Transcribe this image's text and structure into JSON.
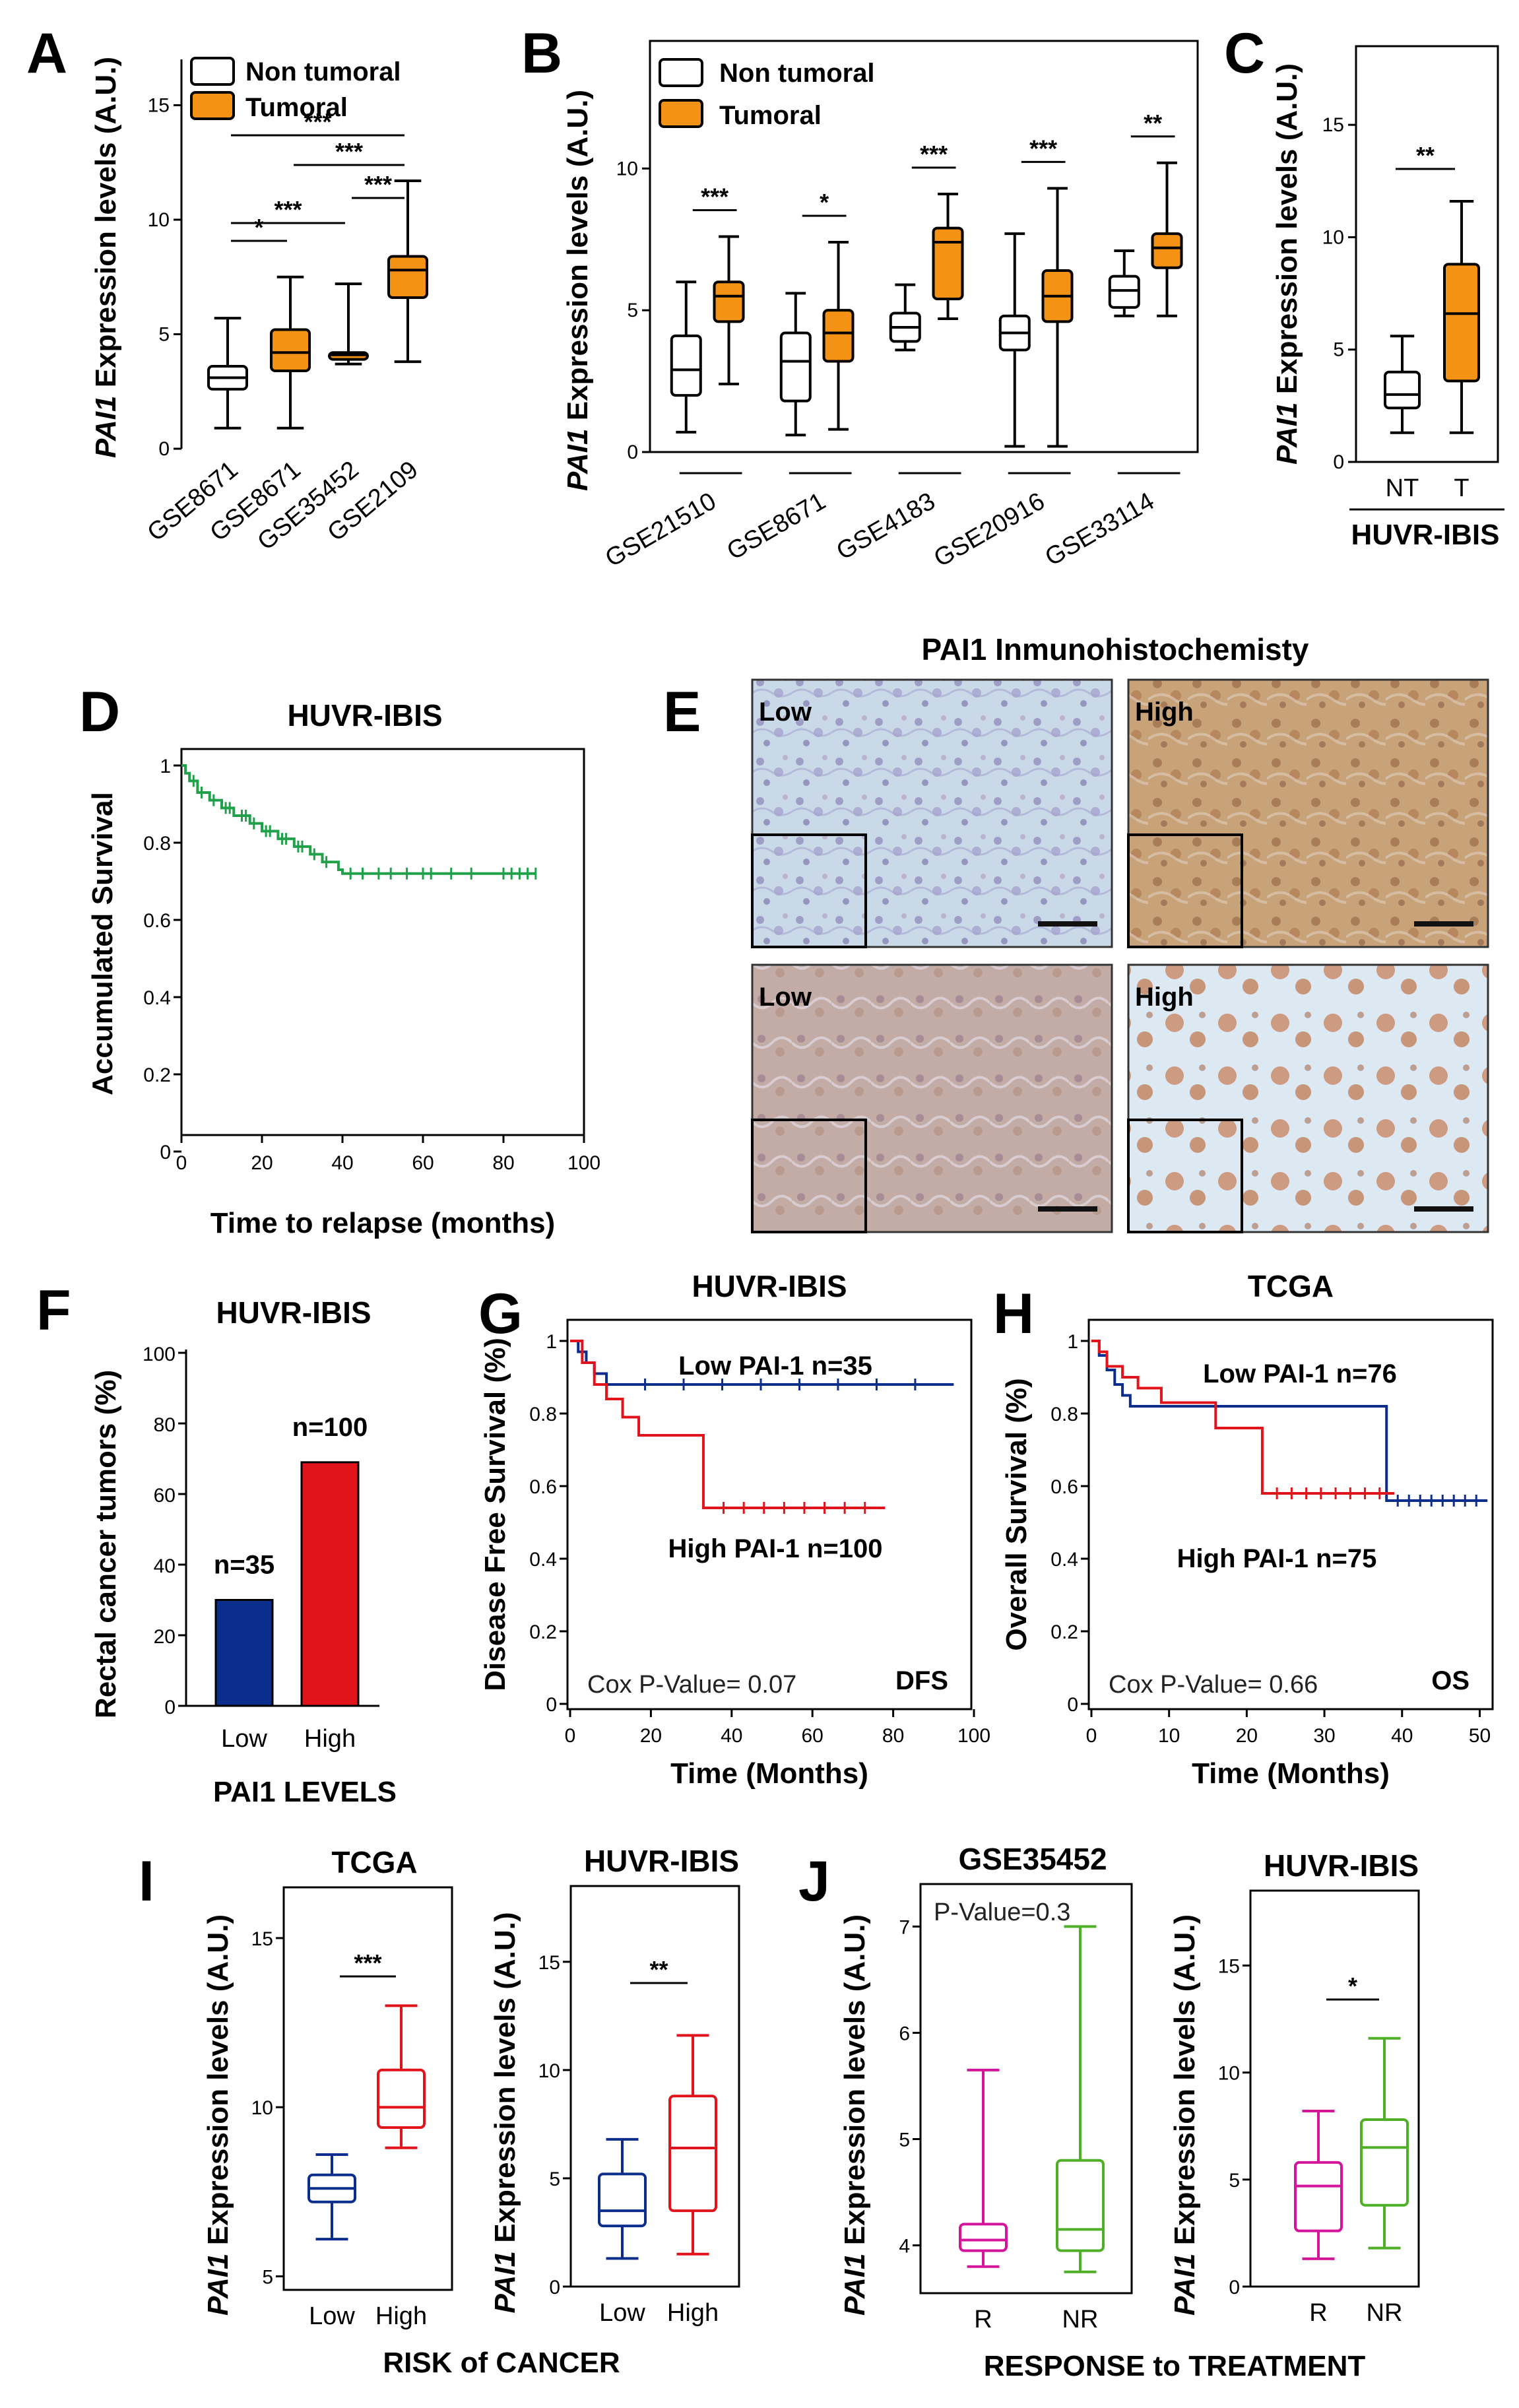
{
  "colors": {
    "non_tumoral": "#ffffff",
    "tumoral": "#f39214",
    "low_blue": "#0b2d8c",
    "high_red": "#e1141c",
    "km_green": "#21a04a",
    "r_magenta": "#d4149a",
    "nr_green": "#4fb027"
  },
  "panel_letters": [
    "A",
    "B",
    "C",
    "D",
    "E",
    "F",
    "G",
    "H",
    "I",
    "J"
  ],
  "chart_data": [
    {
      "panel": "A",
      "type": "box",
      "ylabel_gene": "PAI1",
      "ylabel_rest": " Expression levels (A.U.)",
      "ylim": [
        0,
        17
      ],
      "yticks": [
        "0",
        "5",
        "10",
        "15"
      ],
      "legend": [
        "Non tumoral",
        "Tumoral"
      ],
      "categories": [
        "GSE8671",
        "GSE8671",
        "GSE35452",
        "GSE2109"
      ],
      "boxes": [
        {
          "group": "Non tumoral",
          "min": 0.9,
          "q1": 2.6,
          "median": 3.1,
          "q3": 3.6,
          "max": 5.7
        },
        {
          "group": "Tumoral",
          "min": 0.9,
          "q1": 3.4,
          "median": 4.2,
          "q3": 5.2,
          "max": 7.5
        },
        {
          "group": "Tumoral",
          "min": 3.7,
          "q1": 3.9,
          "median": 4.1,
          "q3": 4.2,
          "max": 7.2
        },
        {
          "group": "Tumoral",
          "min": 3.8,
          "q1": 6.6,
          "median": 7.8,
          "q3": 8.4,
          "max": 11.7
        }
      ],
      "significance": [
        {
          "from": 0,
          "to": 1,
          "label": "*"
        },
        {
          "from": 0,
          "to": 2,
          "label": "***"
        },
        {
          "from": 2,
          "to": 3,
          "label": "***"
        },
        {
          "from": 1,
          "to": 3,
          "label": "***"
        },
        {
          "from": 0,
          "to": 3,
          "label": "***"
        }
      ]
    },
    {
      "panel": "B",
      "type": "box",
      "ylabel_gene": "PAI1",
      "ylabel_rest": " Expression levels (A.U.)",
      "ylim": [
        0,
        14.5
      ],
      "yticks": [
        "0",
        "5",
        "10"
      ],
      "legend": [
        "Non tumoral",
        "Tumoral"
      ],
      "categories": [
        "GSE21510",
        "GSE8671",
        "GSE4183",
        "GSE20916",
        "GSE33114"
      ],
      "pairs": [
        {
          "nt": {
            "min": 0.7,
            "q1": 2.0,
            "median": 2.9,
            "q3": 4.1,
            "max": 6.0
          },
          "t": {
            "min": 2.4,
            "q1": 4.6,
            "median": 5.5,
            "q3": 6.0,
            "max": 7.6
          },
          "label": "***"
        },
        {
          "nt": {
            "min": 0.6,
            "q1": 1.8,
            "median": 3.2,
            "q3": 4.2,
            "max": 5.6
          },
          "t": {
            "min": 0.8,
            "q1": 3.2,
            "median": 4.2,
            "q3": 5.0,
            "max": 7.4
          },
          "label": "*"
        },
        {
          "nt": {
            "min": 3.6,
            "q1": 3.9,
            "median": 4.4,
            "q3": 4.9,
            "max": 5.9
          },
          "t": {
            "min": 4.7,
            "q1": 5.4,
            "median": 7.4,
            "q3": 7.9,
            "max": 9.1
          },
          "label": "***"
        },
        {
          "nt": {
            "min": 0.2,
            "q1": 3.6,
            "median": 4.2,
            "q3": 4.8,
            "max": 7.7
          },
          "t": {
            "min": 0.2,
            "q1": 4.6,
            "median": 5.5,
            "q3": 6.4,
            "max": 9.3
          },
          "label": "***"
        },
        {
          "nt": {
            "min": 4.8,
            "q1": 5.1,
            "median": 5.7,
            "q3": 6.2,
            "max": 7.1
          },
          "t": {
            "min": 4.8,
            "q1": 6.5,
            "median": 7.2,
            "q3": 7.7,
            "max": 10.2
          },
          "label": "**"
        }
      ]
    },
    {
      "panel": "C",
      "type": "box",
      "ylabel_gene": "PAI1",
      "ylabel_rest": " Expression levels (A.U.)",
      "ylim": [
        0,
        18.5
      ],
      "yticks": [
        "0",
        "5",
        "10",
        "15"
      ],
      "categories": [
        "NT",
        "T"
      ],
      "group_label": "HUVR-IBIS",
      "boxes": [
        {
          "group": "NT",
          "min": 1.3,
          "q1": 2.4,
          "median": 3.0,
          "q3": 4.0,
          "max": 5.6
        },
        {
          "group": "T",
          "min": 1.3,
          "q1": 3.6,
          "median": 6.6,
          "q3": 8.8,
          "max": 11.6
        }
      ],
      "significance": [
        {
          "from": 0,
          "to": 1,
          "label": "**"
        }
      ]
    },
    {
      "panel": "D",
      "type": "line",
      "title": "HUVR-IBIS",
      "xlabel": "Time to relapse (months)",
      "ylabel": "Accumulated Survival",
      "xlim": [
        0,
        100
      ],
      "ylim": [
        0,
        1
      ],
      "xticks": [
        "0",
        "20",
        "40",
        "60",
        "80",
        "100"
      ],
      "yticks": [
        "0",
        "0.2",
        "0.4",
        "0.6",
        "0.8",
        "1"
      ],
      "series": [
        {
          "x": [
            0,
            1,
            2,
            4,
            7,
            10,
            13,
            17,
            20,
            24,
            28,
            32,
            35,
            39,
            40,
            88
          ],
          "y": [
            1,
            0.98,
            0.96,
            0.93,
            0.91,
            0.89,
            0.87,
            0.85,
            0.83,
            0.81,
            0.79,
            0.77,
            0.75,
            0.73,
            0.72,
            0.72
          ]
        }
      ],
      "censor_x": [
        3,
        5,
        8,
        11,
        12,
        15,
        16,
        18,
        21,
        22,
        25,
        26,
        29,
        30,
        33,
        36,
        42,
        45,
        49,
        52,
        56,
        60,
        62,
        67,
        72,
        80,
        82,
        84,
        86,
        88
      ]
    },
    {
      "panel": "E",
      "type": "image",
      "title": "PAI1 Inmunohistochemisty",
      "images": [
        "Low",
        "High",
        "Low",
        "High"
      ]
    },
    {
      "panel": "F",
      "type": "bar",
      "title": "HUVR-IBIS",
      "xlabel": "PAI1 LEVELS",
      "ylabel": "Rectal cancer tumors (%)",
      "categories": [
        "Low",
        "High"
      ],
      "values": [
        30,
        69
      ],
      "labels": [
        "n=35",
        "n=100"
      ],
      "ylim": [
        0,
        100
      ],
      "yticks": [
        "0",
        "20",
        "40",
        "60",
        "80",
        "100"
      ]
    },
    {
      "panel": "G",
      "type": "line",
      "title": "HUVR-IBIS",
      "xlabel": "Time (Months)",
      "ylabel": "Disease Free Survival (%)",
      "xlim": [
        0,
        100
      ],
      "ylim": [
        0,
        1
      ],
      "xticks": [
        "0",
        "20",
        "40",
        "60",
        "80",
        "100"
      ],
      "yticks": [
        "0",
        "0.2",
        "0.4",
        "0.6",
        "0.8",
        "1"
      ],
      "series": [
        {
          "name": "Low PAI-1 n=35",
          "x": [
            0,
            2,
            4,
            6,
            9,
            95
          ],
          "y": [
            1,
            0.97,
            0.94,
            0.91,
            0.88,
            0.88
          ]
        },
        {
          "name": "High PAI-1 n=100",
          "x": [
            0,
            3,
            6,
            9,
            13,
            17,
            33,
            78
          ],
          "y": [
            1,
            0.94,
            0.88,
            0.84,
            0.79,
            0.74,
            0.54,
            0.54
          ]
        }
      ],
      "annotation": "Cox P-Value= 0.07",
      "tag": "DFS"
    },
    {
      "panel": "H",
      "type": "line",
      "title": "TCGA",
      "xlabel": "Time (Months)",
      "ylabel": "Overall Survival (%)",
      "xlim": [
        0,
        52
      ],
      "ylim": [
        0,
        1
      ],
      "xticks": [
        "0",
        "10",
        "20",
        "30",
        "40",
        "50"
      ],
      "yticks": [
        "0",
        "0.2",
        "0.4",
        "0.6",
        "0.8",
        "1"
      ],
      "series": [
        {
          "name": "Low PAI-1 n=76",
          "x": [
            0,
            1,
            2,
            3,
            4,
            5,
            38,
            51
          ],
          "y": [
            1,
            0.96,
            0.92,
            0.88,
            0.85,
            0.82,
            0.56,
            0.56
          ]
        },
        {
          "name": "High PAI-1 n=75",
          "x": [
            0,
            1,
            2,
            4,
            6,
            9,
            16,
            22,
            39
          ],
          "y": [
            1,
            0.97,
            0.93,
            0.9,
            0.87,
            0.83,
            0.76,
            0.58,
            0.58
          ]
        }
      ],
      "annotation": "Cox P-Value= 0.66",
      "tag": "OS"
    },
    {
      "panel": "I",
      "type": "box",
      "title": "TCGA",
      "ylabel_gene": "PAI1",
      "ylabel_rest": " Expression levels (A.U.)",
      "ylim": [
        4.6,
        16.5
      ],
      "yticks": [
        "5",
        "10",
        "15"
      ],
      "categories": [
        "Low",
        "High"
      ],
      "boxes": [
        {
          "group": "Low",
          "min": 6.1,
          "q1": 7.2,
          "median": 7.6,
          "q3": 8.0,
          "max": 8.6
        },
        {
          "group": "High",
          "min": 8.8,
          "q1": 9.4,
          "median": 10.0,
          "q3": 11.1,
          "max": 13.0
        }
      ],
      "significance": [
        {
          "from": 0,
          "to": 1,
          "label": "***"
        }
      ]
    },
    {
      "panel": "I",
      "type": "box",
      "title": "HUVR-IBIS",
      "ylabel_gene": "PAI1",
      "ylabel_rest": " Expression levels (A.U.)",
      "ylim": [
        0,
        18.5
      ],
      "yticks": [
        "0",
        "5",
        "10",
        "15"
      ],
      "categories": [
        "Low",
        "High"
      ],
      "group_label": "RISK of CANCER",
      "boxes": [
        {
          "group": "Low",
          "min": 1.3,
          "q1": 2.8,
          "median": 3.5,
          "q3": 5.2,
          "max": 6.8
        },
        {
          "group": "High",
          "min": 1.5,
          "q1": 3.5,
          "median": 6.4,
          "q3": 8.8,
          "max": 11.6
        }
      ],
      "significance": [
        {
          "from": 0,
          "to": 1,
          "label": "**"
        }
      ]
    },
    {
      "panel": "J",
      "type": "box",
      "title": "GSE35452",
      "ylabel_gene": "PAI1",
      "ylabel_rest": " Expression levels (A.U.)",
      "ylim": [
        3.55,
        7.4
      ],
      "yticks": [
        "4",
        "5",
        "6",
        "7"
      ],
      "categories": [
        "R",
        "NR"
      ],
      "annotation": "P-Value=0.3",
      "boxes": [
        {
          "group": "R",
          "min": 3.8,
          "q1": 3.95,
          "median": 4.05,
          "q3": 4.2,
          "max": 5.65
        },
        {
          "group": "NR",
          "min": 3.75,
          "q1": 3.95,
          "median": 4.15,
          "q3": 4.8,
          "max": 7.0
        }
      ]
    },
    {
      "panel": "J",
      "type": "box",
      "title": "HUVR-IBIS",
      "ylabel_gene": "PAI1",
      "ylabel_rest": " Expression levels (A.U.)",
      "ylim": [
        0,
        18.5
      ],
      "yticks": [
        "0",
        "5",
        "10",
        "15"
      ],
      "categories": [
        "R",
        "NR"
      ],
      "group_label": "RESPONSE to TREATMENT",
      "boxes": [
        {
          "group": "R",
          "min": 1.3,
          "q1": 2.6,
          "median": 4.7,
          "q3": 5.8,
          "max": 8.2
        },
        {
          "group": "NR",
          "min": 1.8,
          "q1": 3.8,
          "median": 6.5,
          "q3": 7.8,
          "max": 11.6
        }
      ],
      "significance": [
        {
          "from": 0,
          "to": 1,
          "label": "*"
        }
      ]
    }
  ]
}
